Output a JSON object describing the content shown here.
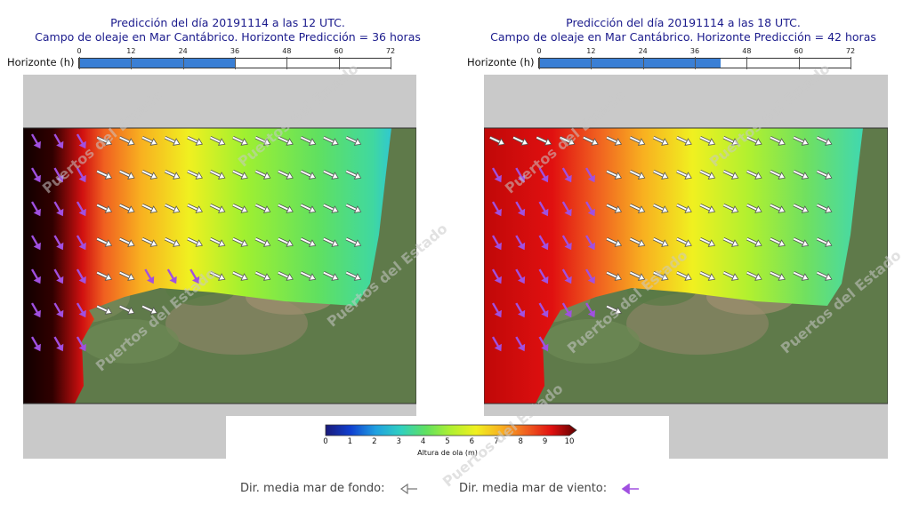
{
  "panels": [
    {
      "title_line1": "Predicción del día 20191114 a las 12 UTC.",
      "title_line2": "Campo de oleaje en Mar Cantábrico. Horizonte Predicción = 36 horas",
      "horizon_label": "Horizonte (h)",
      "horizon_value": 36,
      "horizon_ticks": [
        "0",
        "12",
        "24",
        "36",
        "48",
        "60",
        "72"
      ]
    },
    {
      "title_line1": "Predicción del día 20191114 a las 18 UTC.",
      "title_line2": "Campo de oleaje en Mar Cantábrico. Horizonte Predicción = 42 horas",
      "horizon_label": "Horizonte (h)",
      "horizon_value": 42,
      "horizon_ticks": [
        "0",
        "12",
        "24",
        "36",
        "48",
        "60",
        "72"
      ]
    }
  ],
  "horizon_max": 72,
  "colorbar": {
    "ticks": [
      "0",
      "1",
      "2",
      "3",
      "4",
      "5",
      "6",
      "7",
      "8",
      "9",
      "10"
    ],
    "title": "Altura de ola (m)",
    "colors": [
      "#1a1a7a",
      "#1040d0",
      "#20a0e0",
      "#30d0c0",
      "#60e060",
      "#b0f030",
      "#f0f020",
      "#f8b020",
      "#f06020",
      "#e01010",
      "#600000"
    ]
  },
  "legend": {
    "background_label": "Dir. media mar de fondo:",
    "wind_label": "Dir. media mar de viento:",
    "background_arrow_color": "#ffffff",
    "wind_arrow_color": "#a050e0"
  },
  "watermark": "Puertos del Estado"
}
